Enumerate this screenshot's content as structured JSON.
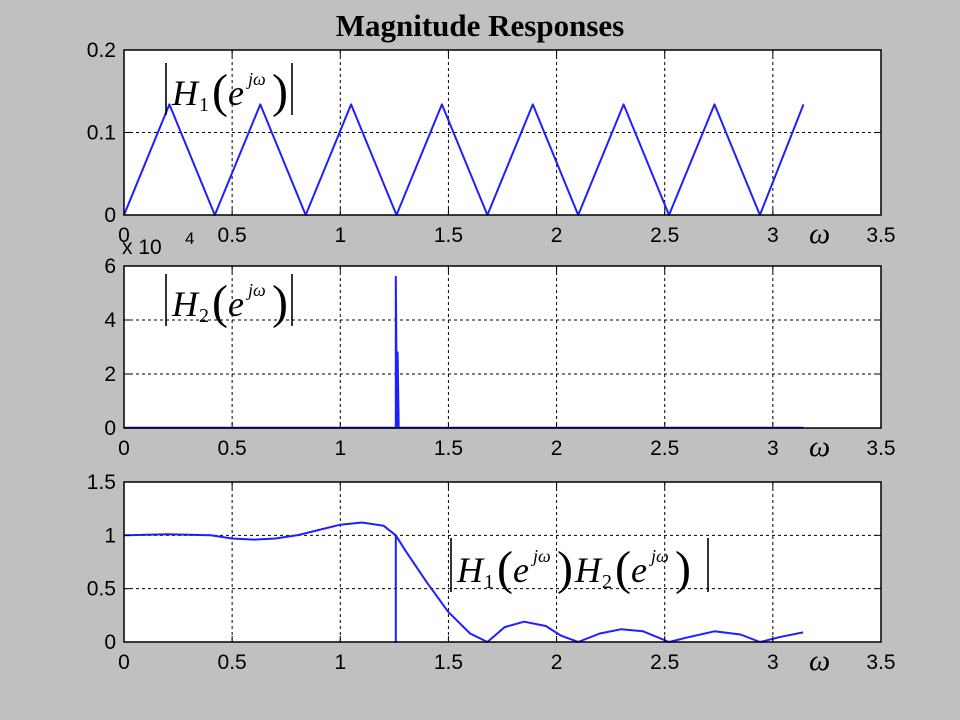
{
  "title": "Magnitude Responses",
  "colors": {
    "line": "#1f1fff",
    "background": "#c0c0c0",
    "plot_area": "#ffffff",
    "grid": "#000000"
  },
  "chart_data": [
    {
      "type": "line",
      "x_axis_symbol": "ω",
      "annotation": {
        "H": "H",
        "sub": "1",
        "base": "e",
        "exp": "jω"
      },
      "xlim": [
        0,
        3.5
      ],
      "ylim": [
        0,
        0.2
      ],
      "xticks": [
        0,
        0.5,
        1,
        1.5,
        2,
        2.5,
        3,
        3.5
      ],
      "yticks": [
        0,
        0.1,
        0.2
      ],
      "xtick_labels": [
        "0",
        "0.5",
        "1",
        "1.5",
        "2",
        "2.5",
        "3",
        "3.5"
      ],
      "ytick_labels": [
        "0",
        "0.1",
        "0.2"
      ],
      "grid": true,
      "series": [
        {
          "x": [
            0,
            0.21,
            0.42,
            0.63,
            0.84,
            1.05,
            1.26,
            1.47,
            1.68,
            1.89,
            2.1,
            2.31,
            2.52,
            2.73,
            2.94,
            3.1416
          ],
          "y": [
            0,
            0.134,
            0,
            0.134,
            0,
            0.134,
            0,
            0.134,
            0,
            0.134,
            0,
            0.134,
            0,
            0.134,
            0,
            0.134
          ]
        }
      ]
    },
    {
      "type": "line",
      "x_axis_symbol": "ω",
      "annotation": {
        "H": "H",
        "sub": "2",
        "base": "e",
        "exp": "jω"
      },
      "scale_note": {
        "prefix": "x 10",
        "power": "4"
      },
      "xlim": [
        0,
        3.5
      ],
      "ylim": [
        0,
        6
      ],
      "xticks": [
        0,
        0.5,
        1,
        1.5,
        2,
        2.5,
        3,
        3.5
      ],
      "yticks": [
        0,
        2,
        4,
        6
      ],
      "xtick_labels": [
        "0",
        "0.5",
        "1",
        "1.5",
        "2",
        "2.5",
        "3",
        "3.5"
      ],
      "ytick_labels": [
        "0",
        "2",
        "4",
        "6"
      ],
      "grid": true,
      "series": [
        {
          "x": [
            0,
            1.25,
            1.2566,
            1.2566,
            1.262,
            1.265,
            1.27,
            3.1416
          ],
          "y": [
            0.01,
            0.01,
            0.01,
            5.6,
            0.01,
            2.8,
            0.01,
            0.01
          ]
        }
      ]
    },
    {
      "type": "line",
      "x_axis_symbol": "ω",
      "annotation": {
        "H1": "H",
        "sub1": "1",
        "H2": "H",
        "sub2": "2",
        "base": "e",
        "exp": "jω"
      },
      "xlim": [
        0,
        3.5
      ],
      "ylim": [
        0,
        1.5
      ],
      "xticks": [
        0,
        0.5,
        1,
        1.5,
        2,
        2.5,
        3,
        3.5
      ],
      "yticks": [
        0,
        0.5,
        1,
        1.5
      ],
      "xtick_labels": [
        "0",
        "0.5",
        "1",
        "1.5",
        "2",
        "2.5",
        "3",
        "3.5"
      ],
      "ytick_labels": [
        "0",
        "0.5",
        "1",
        "1.5"
      ],
      "grid": true,
      "series": [
        {
          "x": [
            0,
            0.2,
            0.4,
            0.5,
            0.6,
            0.7,
            0.8,
            0.9,
            1.0,
            1.1,
            1.2,
            1.2566,
            1.2566,
            1.2566,
            1.3,
            1.4,
            1.5,
            1.6,
            1.68,
            1.76,
            1.85,
            1.95,
            2.02,
            2.1,
            2.2,
            2.3,
            2.4,
            2.52,
            2.6,
            2.73,
            2.85,
            2.94,
            3.04,
            3.14
          ],
          "y": [
            1.0,
            1.01,
            1.0,
            0.97,
            0.96,
            0.97,
            1.0,
            1.05,
            1.1,
            1.12,
            1.09,
            1.0,
            0.0,
            1.0,
            0.86,
            0.56,
            0.28,
            0.08,
            0.0,
            0.14,
            0.19,
            0.15,
            0.06,
            0.0,
            0.08,
            0.12,
            0.1,
            0.0,
            0.04,
            0.1,
            0.07,
            0.0,
            0.05,
            0.09
          ]
        }
      ]
    }
  ]
}
